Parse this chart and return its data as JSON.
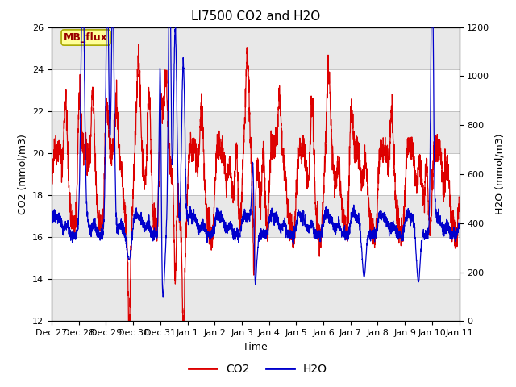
{
  "title": "LI7500 CO2 and H2O",
  "xlabel": "Time",
  "ylabel_left": "CO2 (mmol/m3)",
  "ylabel_right": "H2O (mmol/m3)",
  "ylim_left": [
    12,
    26
  ],
  "ylim_right": [
    0,
    1200
  ],
  "yticks_left": [
    12,
    14,
    16,
    18,
    20,
    22,
    24,
    26
  ],
  "yticks_right": [
    0,
    200,
    400,
    600,
    800,
    1000,
    1200
  ],
  "legend_label_co2": "CO2",
  "legend_label_h2o": "H2O",
  "co2_color": "#dd0000",
  "h2o_color": "#0000cc",
  "annotation_text": "MB_flux",
  "annotation_bg": "#ffff99",
  "annotation_border": "#aaaa00",
  "grid_color": "#cccccc",
  "plot_bg": "#ffffff",
  "band_color": "#e8e8e8",
  "seed": 42,
  "n_points": 3000
}
